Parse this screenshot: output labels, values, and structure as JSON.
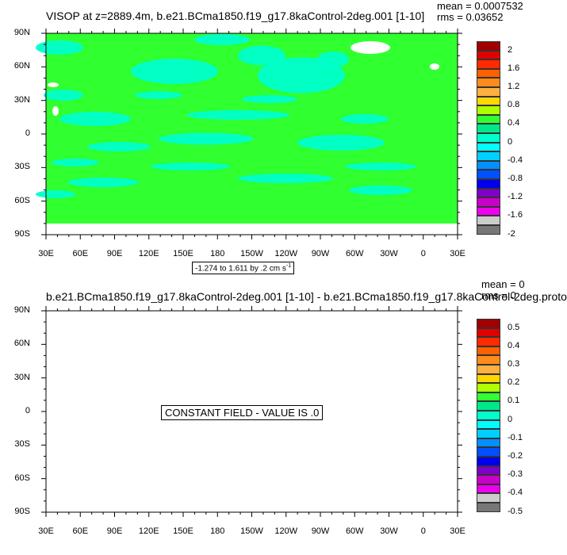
{
  "chart_data": [
    {
      "type": "heatmap",
      "title": "VISOP at z=2889.4m, b.e21.BCma1850.f19_g17.8kaControl-2deg.001 [1-10]",
      "stats": {
        "mean": "mean = 0.0007532",
        "rms": "rms = 0.03652"
      },
      "subtitle": "-1.274 to 1.611 by .2 cm s",
      "subtitle_sup": "-1",
      "x_ticks": [
        "30E",
        "60E",
        "90E",
        "120E",
        "150E",
        "180",
        "150W",
        "120W",
        "90W",
        "60W",
        "30W",
        "0",
        "30E"
      ],
      "y_ticks": [
        "90N",
        "60N",
        "30N",
        "0",
        "30S",
        "60S",
        "90S"
      ],
      "xlim": [
        30,
        390
      ],
      "ylim": [
        -90,
        90
      ],
      "colorbar": {
        "labels": [
          "2",
          "1.6",
          "1.2",
          "0.8",
          "0.4",
          "0",
          "-0.4",
          "-0.8",
          "-1.2",
          "-1.6",
          "-2"
        ],
        "colors": [
          "#a00000",
          "#e00000",
          "#ff2a00",
          "#ff6000",
          "#ff8c1a",
          "#ffb040",
          "#ffd700",
          "#b0ff00",
          "#30ff30",
          "#00e88a",
          "#00ffcc",
          "#00ffff",
          "#00d0ff",
          "#0090ff",
          "#0050ff",
          "#0000ee",
          "#7f00c8",
          "#c800c8",
          "#ee00ee",
          "#cccccc",
          "#777777"
        ]
      },
      "field_description": "mostly near zero: green (0 to 0.2) with cyan (-0.2 to 0) patches; white land ice at top",
      "background_color": "#30ff30",
      "secondary_color": "#00ffcc"
    },
    {
      "type": "heatmap",
      "title": "b.e21.BCma1850.f19_g17.8kaControl-2deg.001 [1-10] - b.e21.BCma1850.f19_g17.8kaControl-2deg.proto",
      "stats": {
        "mean": "mean = 0",
        "rms": "rms = 0"
      },
      "message": "CONSTANT FIELD - VALUE IS .0",
      "x_ticks": [
        "30E",
        "60E",
        "90E",
        "120E",
        "150E",
        "180",
        "150W",
        "120W",
        "90W",
        "60W",
        "30W",
        "0",
        "30E"
      ],
      "y_ticks": [
        "90N",
        "60N",
        "30N",
        "0",
        "30S",
        "60S",
        "90S"
      ],
      "xlim": [
        30,
        390
      ],
      "ylim": [
        -90,
        90
      ],
      "colorbar": {
        "labels": [
          "0.5",
          "0.4",
          "0.3",
          "0.2",
          "0.1",
          "0",
          "-0.1",
          "-0.2",
          "-0.3",
          "-0.4",
          "-0.5"
        ],
        "colors": [
          "#a00000",
          "#e00000",
          "#ff2a00",
          "#ff6000",
          "#ff8c1a",
          "#ffb040",
          "#ffd700",
          "#b0ff00",
          "#30ff30",
          "#00e88a",
          "#00ffcc",
          "#00ffff",
          "#00d0ff",
          "#0090ff",
          "#0050ff",
          "#0000ee",
          "#7f00c8",
          "#c800c8",
          "#ee00ee",
          "#cccccc",
          "#777777"
        ]
      }
    }
  ]
}
